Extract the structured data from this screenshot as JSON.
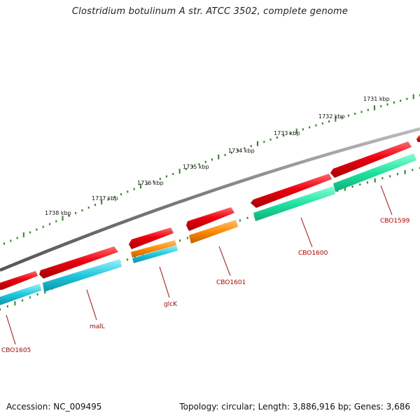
{
  "title": "Clostridium botulinum A str. ATCC 3502, complete genome",
  "footer": {
    "accession_label": "Accession:",
    "accession": "NC_009495",
    "topology_label": "Topology:",
    "topology": "circular",
    "length_label": "Length:",
    "length": "3,886,916 bp",
    "genes_label": "Genes:",
    "genes": "3,686"
  },
  "scale": {
    "unit": "kbp",
    "ticks": [
      "1731 kbp",
      "1732 kbp",
      "1733 kbp",
      "1734 kbp",
      "1735 kbp",
      "1736 kbp",
      "1737 kbp",
      "1738 kbp"
    ]
  },
  "genes": [
    {
      "label": "CBO1599"
    },
    {
      "label": "CBO1600"
    },
    {
      "label": "CBO1601"
    },
    {
      "label": "glcK"
    },
    {
      "label": "malL"
    },
    {
      "label": "CBO1605"
    }
  ],
  "colors": {
    "backbone": "#808080",
    "forward_strand": "#e8001a",
    "cog_green": "#22e6a0",
    "cog_cyan": "#22c8dc",
    "cog_orange": "#ff8c00",
    "ticks": "#2a8a1a",
    "label": "#cc0000"
  }
}
